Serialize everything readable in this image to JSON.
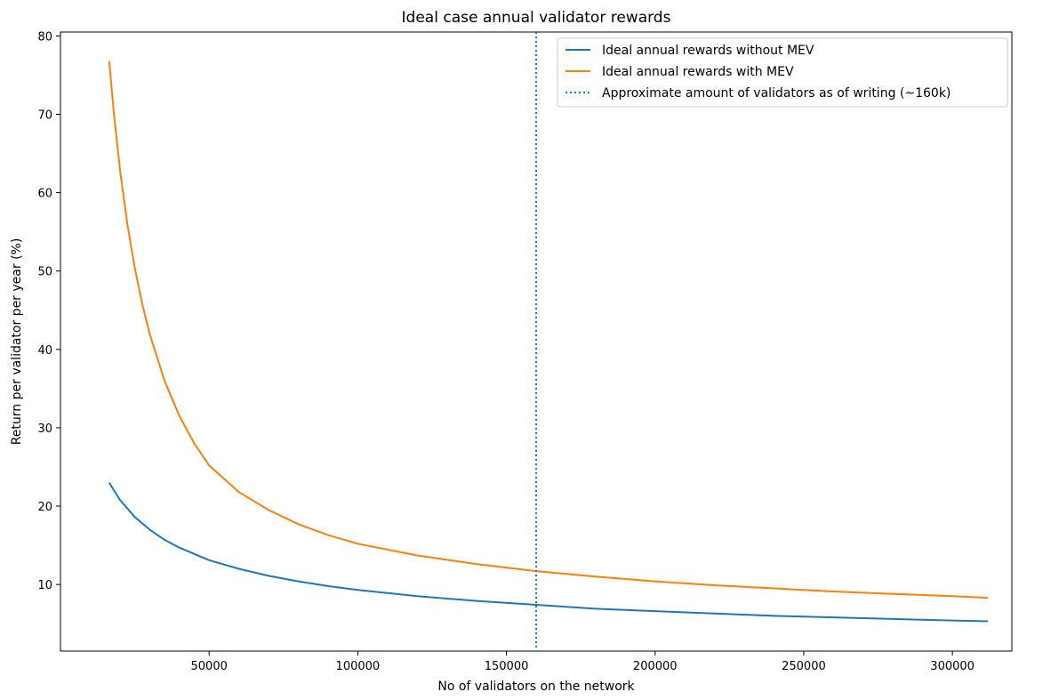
{
  "chart_data": {
    "type": "line",
    "title": "Ideal case annual validator rewards",
    "xlabel": "No of validators on the network",
    "ylabel": "Return per validator per year (%)",
    "xlim": [
      0,
      320000
    ],
    "ylim": [
      1.5,
      80.5
    ],
    "xticks": [
      50000,
      100000,
      150000,
      200000,
      250000,
      300000
    ],
    "xtick_labels": [
      "50000",
      "100000",
      "150000",
      "200000",
      "250000",
      "300000"
    ],
    "yticks": [
      10,
      20,
      30,
      40,
      50,
      60,
      70,
      80
    ],
    "ytick_labels": [
      "10",
      "20",
      "30",
      "40",
      "50",
      "60",
      "70",
      "80"
    ],
    "grid": false,
    "legend_position": "top-right",
    "series": [
      {
        "name": "Ideal annual rewards without MEV",
        "color": "#1f77b4",
        "style": "solid",
        "x": [
          16384,
          20000,
          25000,
          30000,
          35000,
          40000,
          50000,
          60000,
          70000,
          80000,
          90000,
          100000,
          120000,
          140000,
          160000,
          180000,
          200000,
          220000,
          240000,
          260000,
          280000,
          300000,
          311900
        ],
        "y": [
          23.0,
          20.8,
          18.6,
          17.0,
          15.7,
          14.7,
          13.1,
          12.0,
          11.1,
          10.4,
          9.8,
          9.3,
          8.5,
          7.9,
          7.4,
          6.9,
          6.6,
          6.3,
          6.0,
          5.8,
          5.6,
          5.4,
          5.3
        ]
      },
      {
        "name": "Ideal annual rewards with MEV",
        "color": "#ff7f0e",
        "style": "solid",
        "x": [
          16384,
          18000,
          20000,
          22500,
          25000,
          27500,
          30000,
          35000,
          40000,
          45000,
          50000,
          60000,
          70000,
          80000,
          90000,
          100000,
          120000,
          140000,
          160000,
          180000,
          200000,
          220000,
          240000,
          260000,
          280000,
          300000,
          311900
        ],
        "y": [
          76.8,
          70.0,
          63.0,
          56.0,
          50.4,
          45.8,
          42.0,
          36.0,
          31.5,
          28.0,
          25.2,
          21.8,
          19.5,
          17.7,
          16.3,
          15.2,
          13.7,
          12.6,
          11.7,
          11.0,
          10.4,
          9.9,
          9.5,
          9.1,
          8.8,
          8.5,
          8.3
        ]
      },
      {
        "name": "Approximate amount of validators as of writing (~160k)",
        "color": "#1f77b4",
        "style": "dotted",
        "type": "vline",
        "x": [
          160000
        ]
      }
    ]
  }
}
